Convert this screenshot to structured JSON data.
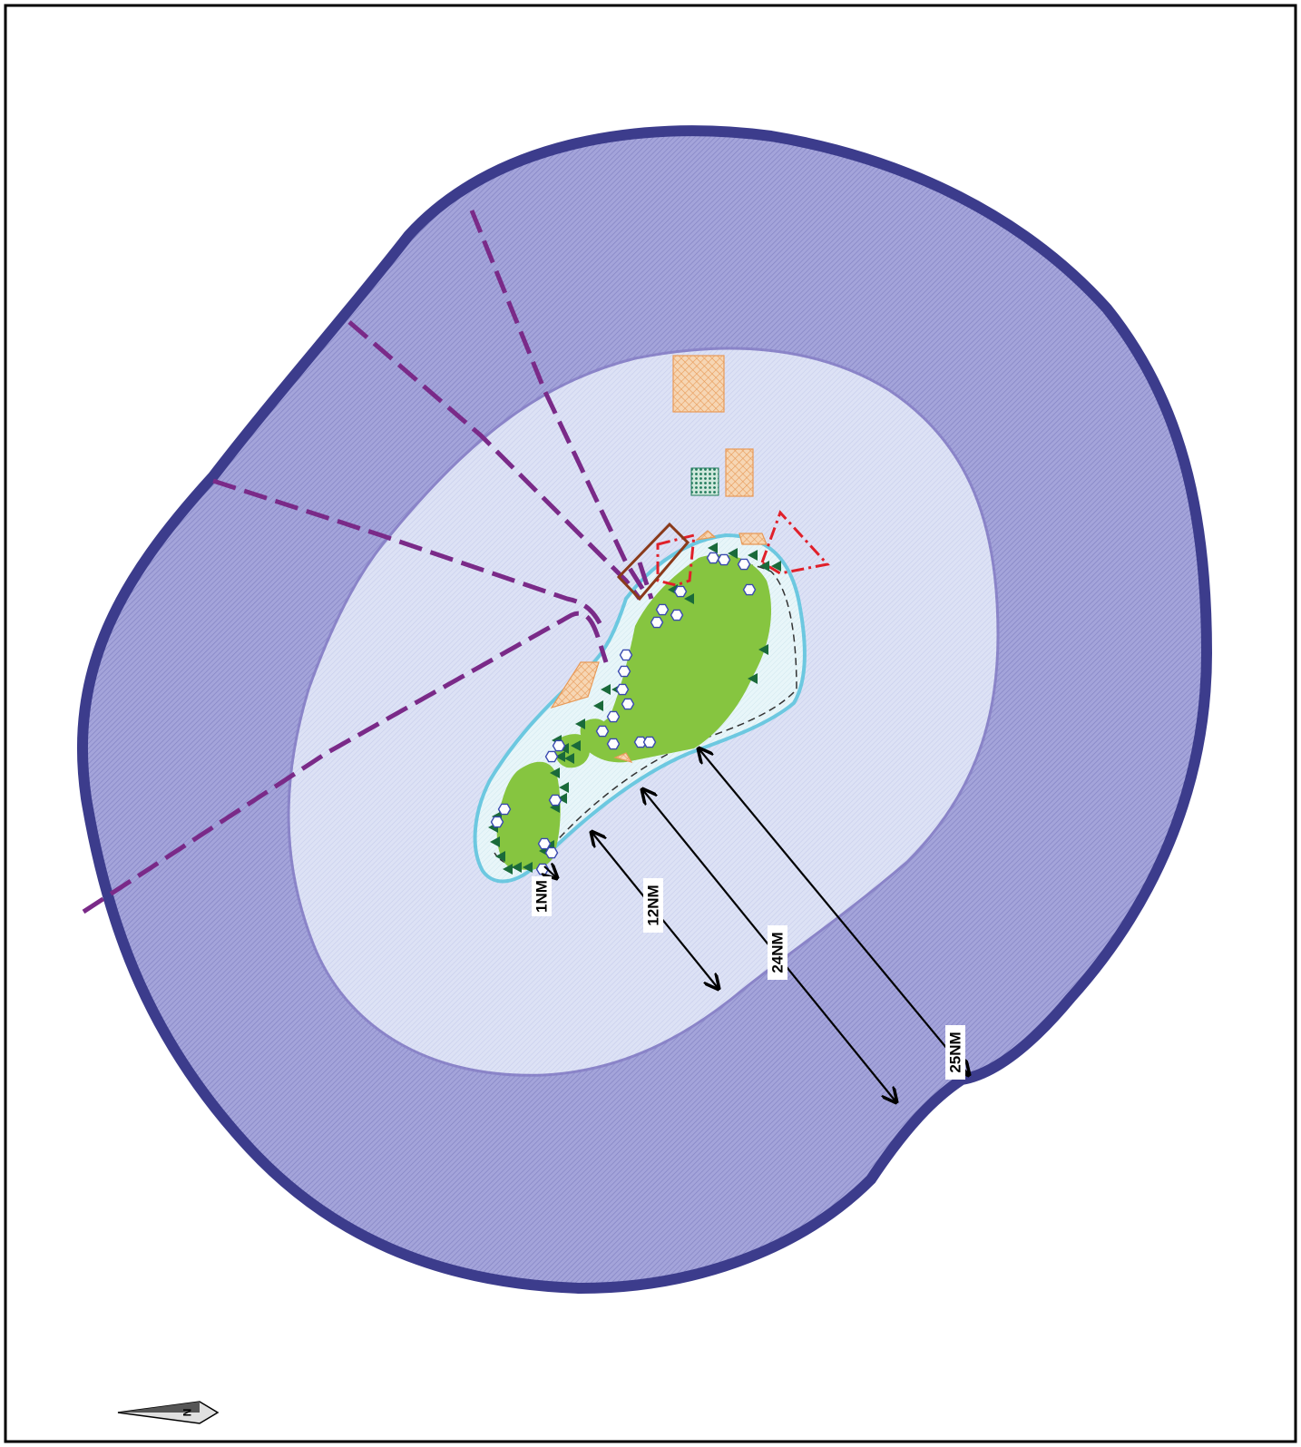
{
  "map": {
    "distance_labels": {
      "nm1": "1NM",
      "nm12": "12NM",
      "nm24": "24NM",
      "nm25": "25NM"
    },
    "north_arrow_letter": "N",
    "colors": {
      "outer_zone": "#9a9ad4",
      "outer_border": "#3c3c8c",
      "territorial_sea": "#d7dcf2",
      "territorial_border": "#8a84c8",
      "coastal_band": "#e4f4f8",
      "coastal_border": "#6cc8e0",
      "island": "#86c540",
      "cable_route": "#7a2a88",
      "red_zone": "#e0202a",
      "brown_zone": "#8a3a1a",
      "hatched_area": "#f0a868",
      "dotted_area": "#1f7a5a",
      "marker_triangle": "#1a6a3a",
      "marker_hexagon": "#3a4ab0"
    },
    "legend_symbols": [
      "triangle-marker",
      "hexagon-marker",
      "hatched-area",
      "dotted-area"
    ]
  }
}
